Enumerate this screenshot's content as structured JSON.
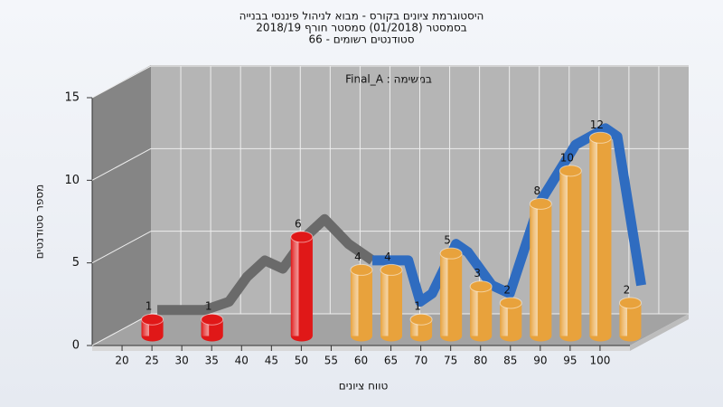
{
  "chart_data": {
    "type": "bar",
    "title": [
      "היסטוגרמת ציונים בקורס - מבוא לניהול פיננסי בבנייה",
      "בסמסטר (01/2018) סמסטר חורף 2018/19",
      "סטודנטים רשומים - 66"
    ],
    "annotation": "Final_A : במשימה",
    "x_label": "טווח ציונים",
    "y_label": "מספר סטודנטים",
    "x": [
      20,
      30,
      45,
      55,
      60,
      65,
      70,
      75,
      80,
      85,
      90,
      95,
      100
    ],
    "values": [
      1,
      1,
      6,
      4,
      4,
      1,
      5,
      3,
      2,
      8,
      10,
      12,
      2
    ],
    "colors": [
      "#e01818",
      "#e01818",
      "#e01818",
      "#e8a23c",
      "#e8a23c",
      "#e8a23c",
      "#e8a23c",
      "#e8a23c",
      "#e8a23c",
      "#e8a23c",
      "#e8a23c",
      "#e8a23c",
      "#e8a23c"
    ],
    "curves": [
      {
        "color": "#6a6a6a",
        "x": [
          20,
          28,
          32,
          35,
          38,
          41,
          45,
          48,
          52,
          56
        ],
        "values": [
          1,
          1,
          1.5,
          3,
          4,
          3.5,
          5.5,
          6.5,
          5,
          4
        ]
      },
      {
        "color": "#2f6cc0",
        "x": [
          56,
          59,
          62,
          64,
          66,
          70,
          72,
          76,
          79,
          84,
          90,
          95,
          97,
          101
        ],
        "values": [
          4,
          4,
          4,
          1.5,
          2,
          5,
          4.5,
          2.5,
          2,
          7.5,
          11,
          12,
          11.5,
          2.5
        ]
      }
    ],
    "xlim": [
      15,
      105
    ],
    "ylim": [
      0,
      15
    ],
    "xticks": [
      20,
      25,
      30,
      35,
      40,
      45,
      50,
      55,
      60,
      65,
      70,
      75,
      80,
      85,
      90,
      95,
      100
    ],
    "yticks": [
      0,
      5,
      10,
      15
    ],
    "grid": true
  }
}
